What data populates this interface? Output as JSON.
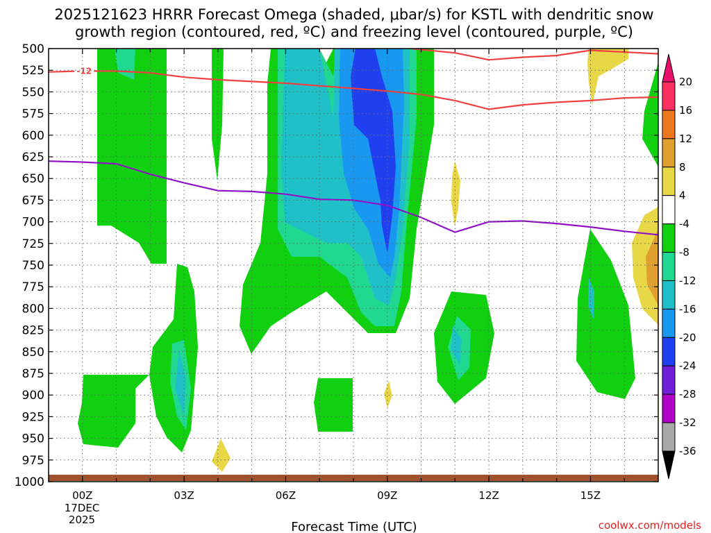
{
  "chart_data": {
    "type": "heatmap",
    "title_line1": "2025121623 HRRR Forecast Omega (shaded, μbar/s) for KSTL with dendritic snow",
    "title_line2": "growth region (contoured, red, ºC) and freezing level (contoured, purple, ºC)",
    "xlabel": "Forecast Time (UTC)",
    "credit": "coolwx.com/models",
    "date_line1": "17DEC",
    "date_line2": "2025",
    "x_range_hours": [
      -1,
      17
    ],
    "x_ticks": [
      {
        "hour": 0,
        "label": "00Z"
      },
      {
        "hour": 3,
        "label": "03Z"
      },
      {
        "hour": 6,
        "label": "06Z"
      },
      {
        "hour": 9,
        "label": "09Z"
      },
      {
        "hour": 12,
        "label": "12Z"
      },
      {
        "hour": 15,
        "label": "15Z"
      }
    ],
    "y_range_hPa": [
      1000,
      500
    ],
    "y_ticks": [
      "500",
      "525",
      "550",
      "575",
      "600",
      "625",
      "650",
      "675",
      "700",
      "725",
      "750",
      "775",
      "800",
      "825",
      "850",
      "875",
      "900",
      "925",
      "950",
      "975",
      "1000"
    ],
    "colorbar": {
      "levels": [
        "20",
        "16",
        "12",
        "8",
        "4",
        "-4",
        "-8",
        "-12",
        "-16",
        "-20",
        "-24",
        "-28",
        "-32",
        "-36"
      ],
      "colors": [
        "#ff3060",
        "#ee7820",
        "#e0a030",
        "#e8d848",
        "#ffffff",
        "#10d010",
        "#20d890",
        "#20c0c8",
        "#1898f0",
        "#2040f0",
        "#7020d8",
        "#b000c8",
        "#a8a8a8",
        "#000000"
      ],
      "top_color": "#e8106a",
      "bottom_color": "#000000"
    },
    "series": [
      {
        "name": "dendritic growth -12C (upper)",
        "color": "#f04040",
        "label": "-12",
        "points": [
          [
            -1,
            527
          ],
          [
            0,
            526
          ],
          [
            1,
            526
          ],
          [
            2,
            528
          ],
          [
            3,
            533
          ],
          [
            4,
            536
          ],
          [
            5,
            538
          ],
          [
            6,
            540
          ],
          [
            7,
            543
          ],
          [
            8,
            546
          ],
          [
            9,
            549
          ],
          [
            10,
            553
          ],
          [
            11,
            560
          ],
          [
            12,
            570
          ],
          [
            13,
            565
          ],
          [
            14,
            562
          ],
          [
            15,
            560
          ],
          [
            16,
            557
          ],
          [
            17,
            556
          ]
        ]
      },
      {
        "name": "dendritic growth upper boundary",
        "color": "#f04040",
        "points": [
          [
            9.7,
            500
          ],
          [
            11,
            505
          ],
          [
            12,
            513
          ],
          [
            13,
            510
          ],
          [
            14,
            508
          ],
          [
            15,
            502
          ],
          [
            16,
            504
          ],
          [
            17,
            506
          ]
        ]
      },
      {
        "name": "freezing level 0C",
        "color": "#9010c8",
        "points": [
          [
            -1,
            630
          ],
          [
            0,
            631
          ],
          [
            1,
            633
          ],
          [
            2,
            645
          ],
          [
            3,
            655
          ],
          [
            4,
            664
          ],
          [
            5,
            665
          ],
          [
            6,
            668
          ],
          [
            7,
            674
          ],
          [
            8,
            675
          ],
          [
            9,
            681
          ],
          [
            10,
            695
          ],
          [
            11,
            712
          ],
          [
            12,
            700
          ],
          [
            13,
            699
          ],
          [
            14,
            702
          ],
          [
            15,
            706
          ],
          [
            16,
            711
          ],
          [
            17,
            715
          ]
        ]
      }
    ],
    "omega_regions": [
      {
        "level": "-4",
        "color": "#10d010",
        "desc": "-4 to -8 μbar/s"
      },
      {
        "level": "-8",
        "color": "#20d890",
        "desc": "-8 to -12 μbar/s"
      },
      {
        "level": "-12",
        "color": "#20c0c8",
        "desc": "-12 to -16 μbar/s"
      },
      {
        "level": "-16",
        "color": "#1898f0",
        "desc": "-16 to -20 μbar/s"
      },
      {
        "level": "-20",
        "color": "#2040f0",
        "desc": "-20 to -24 μbar/s"
      },
      {
        "level": "4",
        "color": "#e8d848",
        "desc": "4 to 8 μbar/s"
      },
      {
        "level": "8",
        "color": "#e0a030",
        "desc": "8 to 12 μbar/s"
      }
    ]
  }
}
